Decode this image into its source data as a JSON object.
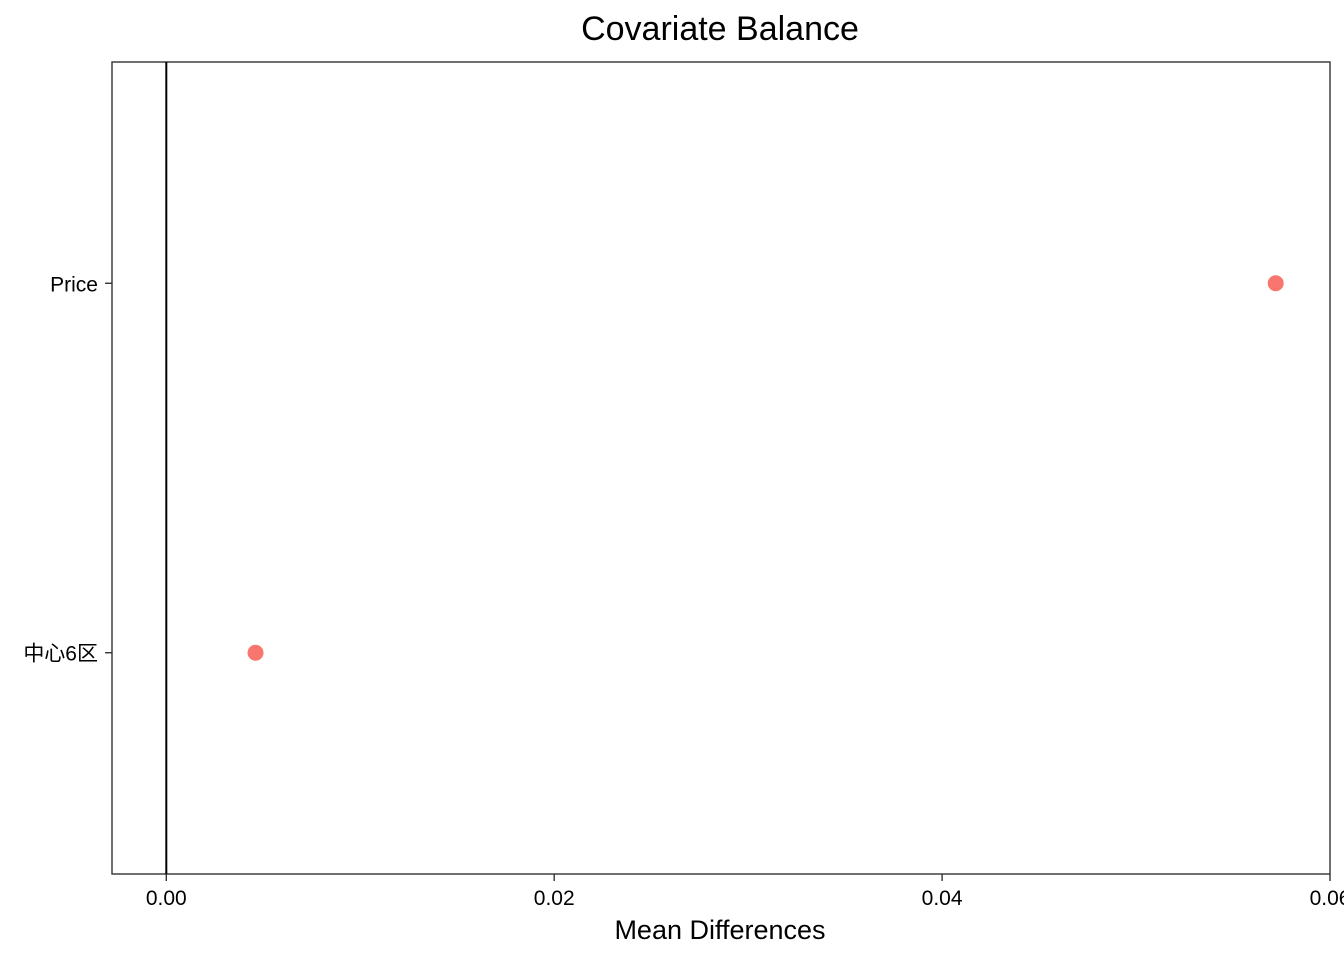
{
  "chart_data": {
    "type": "scatter",
    "title": "Covariate Balance",
    "xlabel": "Mean Differences",
    "ylabel": "",
    "xlim": [
      -0.0028,
      0.06
    ],
    "x_ticks": [
      0.0,
      0.02,
      0.04,
      0.06
    ],
    "x_tick_labels": [
      "0.00",
      "0.02",
      "0.04",
      "0.06"
    ],
    "categories": [
      "中心6区",
      "Price"
    ],
    "points": [
      {
        "category": "Price",
        "x": 0.0572
      },
      {
        "category": "中心6区",
        "x": 0.0046
      }
    ],
    "reference_line_x": 0,
    "grid": false,
    "point_color": "#F8766D"
  }
}
